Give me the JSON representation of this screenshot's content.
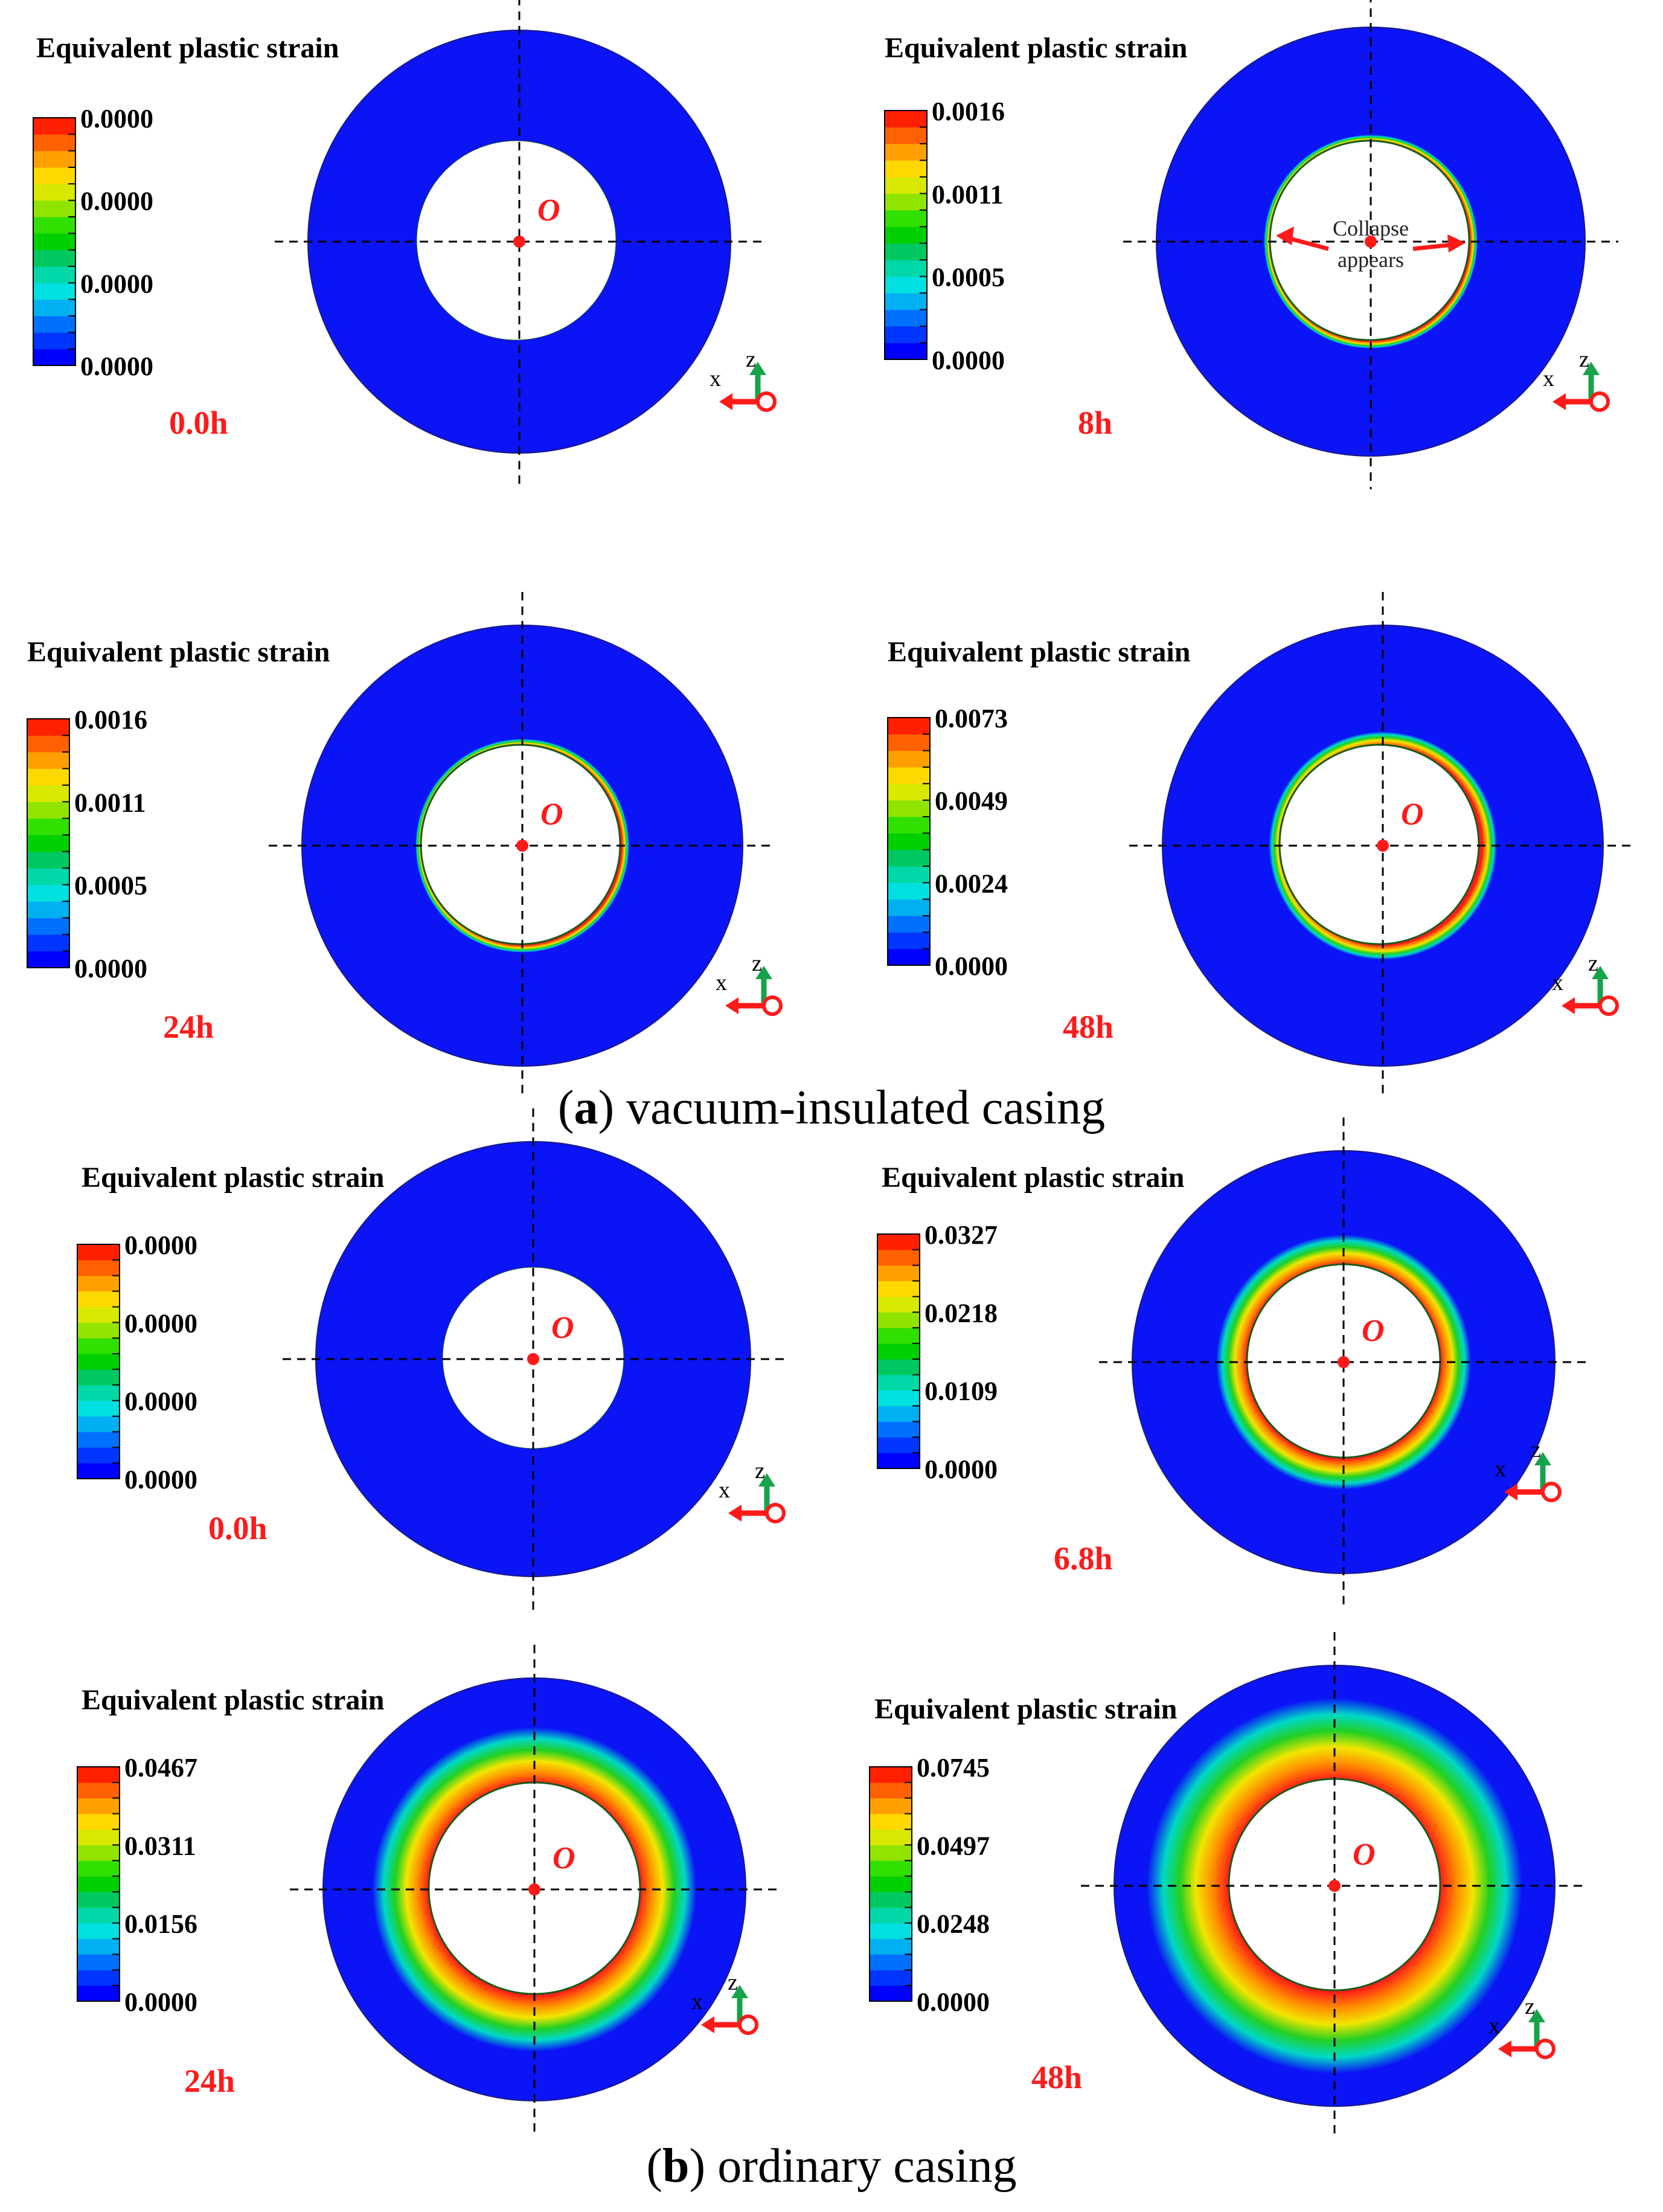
{
  "colors": {
    "ring": "#0a14f5",
    "red": "#ff1a1a",
    "arrow_green": "#16a34a",
    "legend_scale": [
      "#0000ff",
      "#0036ff",
      "#0070ff",
      "#00b0f0",
      "#00e0e0",
      "#00d8a8",
      "#00c860",
      "#00d000",
      "#30e000",
      "#90e400",
      "#d8e800",
      "#ffd800",
      "#ffa000",
      "#ff6000",
      "#ff2000"
    ],
    "strain_gradient": [
      "#ff1a1a",
      "#ff8c00",
      "#f2e600",
      "#22d022",
      "#00d8c8",
      "#0a14f5"
    ]
  },
  "legend_title": "Equivalent plastic strain",
  "panels": [
    {
      "id": "a1",
      "time": "0.0h",
      "legend_labels": [
        "0.0000",
        "0.0000",
        "0.0000",
        "0.0000"
      ],
      "center_label": "O",
      "intensity": 0,
      "annotation": null
    },
    {
      "id": "a2",
      "time": "8h",
      "legend_labels": [
        "0.0016",
        "0.0011",
        "0.0005",
        "0.0000"
      ],
      "center_label": "",
      "intensity": 0.04,
      "annotation": {
        "line1": "Collapse",
        "line2": "appears"
      }
    },
    {
      "id": "a3",
      "time": "24h",
      "legend_labels": [
        "0.0016",
        "0.0011",
        "0.0005",
        "0.0000"
      ],
      "center_label": "O",
      "intensity": 0.06,
      "annotation": null
    },
    {
      "id": "a4",
      "time": "48h",
      "legend_labels": [
        "0.0073",
        "0.0049",
        "0.0024",
        "0.0000"
      ],
      "center_label": "O",
      "intensity": 0.14,
      "annotation": null
    },
    {
      "id": "b1",
      "time": "0.0h",
      "legend_labels": [
        "0.0000",
        "0.0000",
        "0.0000",
        "0.0000"
      ],
      "center_label": "O",
      "intensity": 0,
      "annotation": null
    },
    {
      "id": "b2",
      "time": "6.8h",
      "legend_labels": [
        "0.0327",
        "0.0218",
        "0.0109",
        "0.0000"
      ],
      "center_label": "O",
      "intensity": 0.3,
      "annotation": null
    },
    {
      "id": "b3",
      "time": "24h",
      "legend_labels": [
        "0.0467",
        "0.0311",
        "0.0156",
        "0.0000"
      ],
      "center_label": "O",
      "intensity": 0.55,
      "annotation": null
    },
    {
      "id": "b4",
      "time": "48h",
      "legend_labels": [
        "0.0745",
        "0.0497",
        "0.0248",
        "0.0000"
      ],
      "center_label": "O",
      "intensity": 0.8,
      "annotation": null
    }
  ],
  "axes_labels": {
    "x": "x",
    "z": "z"
  },
  "captions": {
    "a": {
      "letter": "a",
      "text": " vacuum-insulated casing"
    },
    "b": {
      "letter": "b",
      "text": " ordinary casing"
    }
  }
}
